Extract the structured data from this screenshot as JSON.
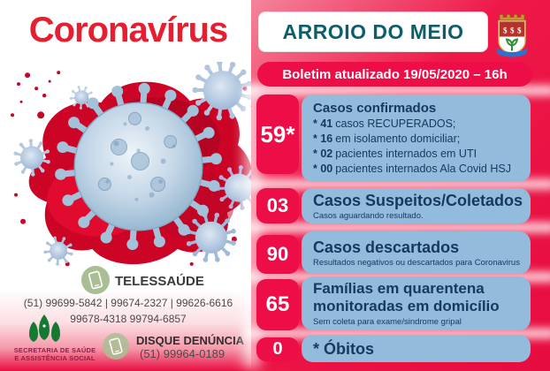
{
  "title": "Coronavírus",
  "header": {
    "city": "ARROIO DO MEIO",
    "bulletin": "Boletim atualizado 19/05/2020 – 16h"
  },
  "stats": [
    {
      "value": "59*",
      "title": "Casos confirmados",
      "details": [
        {
          "lead": "* 41",
          "rest": "casos RECUPERADOS;"
        },
        {
          "lead": "* 16",
          "rest": "em isolamento domiciliar;"
        },
        {
          "lead": "* 02",
          "rest": "pacientes internados em UTI"
        },
        {
          "lead": "* 00",
          "rest": "pacientes internados Ala Covid HSJ"
        }
      ]
    },
    {
      "value": "03",
      "title": "Casos Suspeitos/Coletados",
      "subtitle": "Casos aguardando resultado."
    },
    {
      "value": "90",
      "title": "Casos descartados",
      "subtitle": "Resultados negativos ou descartados para Coronavirus"
    },
    {
      "value": "65",
      "title": "Famílias em quarentena monitoradas em domicílio",
      "subtitle": "Sem coleta para exame/sindrome gripal"
    },
    {
      "value": "0",
      "title": "* Óbitos"
    }
  ],
  "contacts": {
    "telehealth": {
      "label": "TELESSAÚDE",
      "line1": "(51) 99699-5842 | 99674-2327  | 99626-6616",
      "line2": "99678-4318  99794-6857"
    },
    "report": {
      "label": "DISQUE DENÚNCIA",
      "phone": "(51) 99964-0189"
    }
  },
  "org": {
    "line1": "SECRETARIA DE SAÚDE",
    "line2": "E ASSISTÊNCIA SOCIAL"
  },
  "colors": {
    "crimson": "#ed0d47",
    "light_blue": "#92bbdc",
    "navy": "#17395d",
    "teal": "#0c5e6a",
    "title_red": "#e71e2f",
    "sage": "#a9bf93",
    "tree_green": "#157a31",
    "maroon": "#8f1f45"
  }
}
